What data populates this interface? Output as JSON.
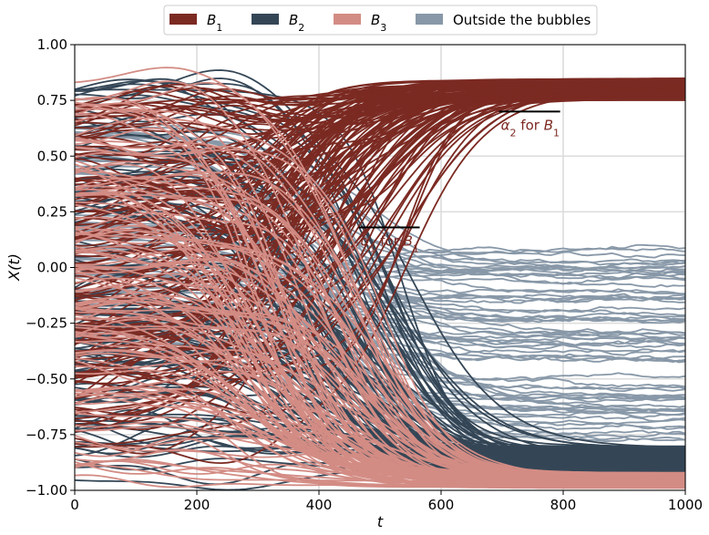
{
  "chart_data": {
    "type": "line",
    "title": "",
    "xlabel": "t",
    "ylabel": "X(t)",
    "xlim": [
      0,
      1000
    ],
    "ylim": [
      -1.0,
      1.0
    ],
    "xticks": [
      "0",
      "200",
      "400",
      "600",
      "800",
      "1000"
    ],
    "yticks": [
      "1.00",
      "0.75",
      "0.50",
      "0.25",
      "0.00",
      "−0.25",
      "−0.50",
      "−0.75",
      "−1.00"
    ],
    "grid": true,
    "legend_position": "top-center",
    "series": [
      {
        "name": "B1",
        "label_base": "B",
        "label_sub": "1",
        "color": "#7b2a22",
        "final_range": [
          0.75,
          0.85
        ],
        "trajectory_count": 120
      },
      {
        "name": "B2",
        "label_base": "B",
        "label_sub": "2",
        "color": "#344656",
        "final_range": [
          -0.93,
          -0.8
        ],
        "trajectory_count": 110
      },
      {
        "name": "B3",
        "label_base": "B",
        "label_sub": "3",
        "color": "#d38c84",
        "final_range": [
          -0.99,
          -0.92
        ],
        "trajectory_count": 110
      },
      {
        "name": "Outside the bubbles",
        "label_base": "Outside the bubbles",
        "label_sub": "",
        "color": "#8898a8",
        "final_range": [
          -0.78,
          0.09
        ],
        "trajectory_count": 70
      }
    ],
    "annotations": [
      {
        "label_prefix": "α",
        "label_sub": "1",
        "label_mid": " for ",
        "label_base": "B",
        "label_base_sub": "1",
        "x_start": 465,
        "x_end": 565,
        "y": 0.18,
        "color": "#7b2a22"
      },
      {
        "label_prefix": "α",
        "label_sub": "2",
        "label_mid": " for ",
        "label_base": "B",
        "label_base_sub": "1",
        "x_start": 695,
        "x_end": 795,
        "y": 0.7,
        "color": "#7b2a22"
      }
    ]
  }
}
